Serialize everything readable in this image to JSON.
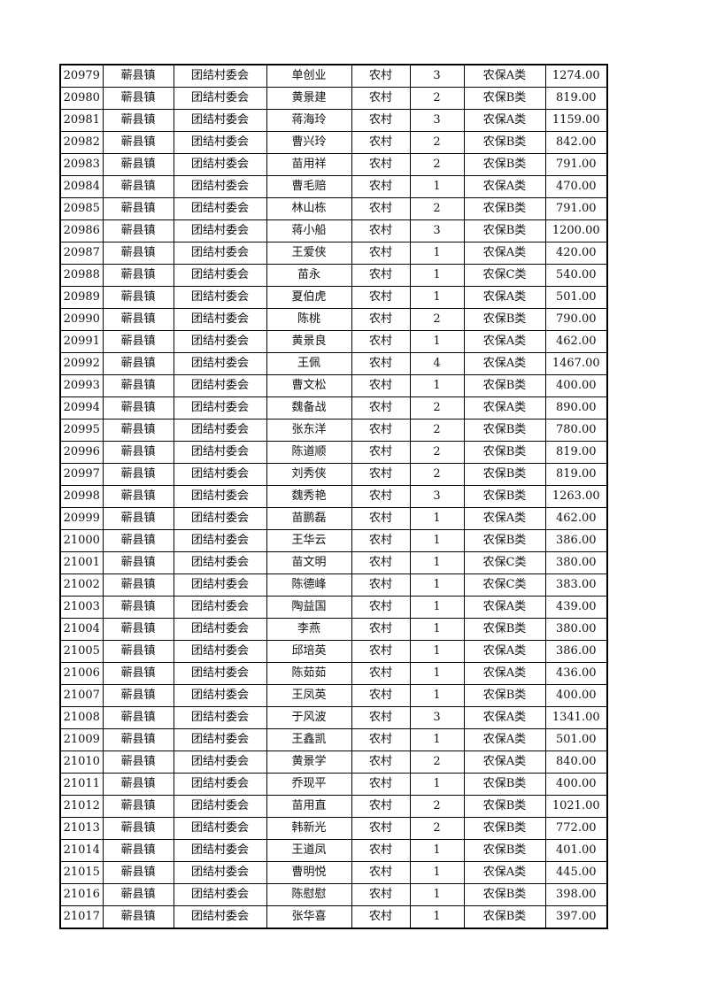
{
  "table": {
    "rows": [
      [
        "20979",
        "蕲县镇",
        "团结村委会",
        "单创业",
        "农村",
        "3",
        "农保A类",
        "1274.00"
      ],
      [
        "20980",
        "蕲县镇",
        "团结村委会",
        "黄景建",
        "农村",
        "2",
        "农保B类",
        "819.00"
      ],
      [
        "20981",
        "蕲县镇",
        "团结村委会",
        "蒋海玲",
        "农村",
        "3",
        "农保A类",
        "1159.00"
      ],
      [
        "20982",
        "蕲县镇",
        "团结村委会",
        "曹兴玲",
        "农村",
        "2",
        "农保B类",
        "842.00"
      ],
      [
        "20983",
        "蕲县镇",
        "团结村委会",
        "苗用祥",
        "农村",
        "2",
        "农保B类",
        "791.00"
      ],
      [
        "20984",
        "蕲县镇",
        "团结村委会",
        "曹毛赔",
        "农村",
        "1",
        "农保A类",
        "470.00"
      ],
      [
        "20985",
        "蕲县镇",
        "团结村委会",
        "林山栋",
        "农村",
        "2",
        "农保B类",
        "791.00"
      ],
      [
        "20986",
        "蕲县镇",
        "团结村委会",
        "蒋小船",
        "农村",
        "3",
        "农保B类",
        "1200.00"
      ],
      [
        "20987",
        "蕲县镇",
        "团结村委会",
        "王爱侠",
        "农村",
        "1",
        "农保A类",
        "420.00"
      ],
      [
        "20988",
        "蕲县镇",
        "团结村委会",
        "苗永",
        "农村",
        "1",
        "农保C类",
        "540.00"
      ],
      [
        "20989",
        "蕲县镇",
        "团结村委会",
        "夏伯虎",
        "农村",
        "1",
        "农保A类",
        "501.00"
      ],
      [
        "20990",
        "蕲县镇",
        "团结村委会",
        "陈桃",
        "农村",
        "2",
        "农保B类",
        "790.00"
      ],
      [
        "20991",
        "蕲县镇",
        "团结村委会",
        "黄景良",
        "农村",
        "1",
        "农保A类",
        "462.00"
      ],
      [
        "20992",
        "蕲县镇",
        "团结村委会",
        "王佩",
        "农村",
        "4",
        "农保A类",
        "1467.00"
      ],
      [
        "20993",
        "蕲县镇",
        "团结村委会",
        "曹文松",
        "农村",
        "1",
        "农保B类",
        "400.00"
      ],
      [
        "20994",
        "蕲县镇",
        "团结村委会",
        "魏备战",
        "农村",
        "2",
        "农保A类",
        "890.00"
      ],
      [
        "20995",
        "蕲县镇",
        "团结村委会",
        "张东洋",
        "农村",
        "2",
        "农保B类",
        "780.00"
      ],
      [
        "20996",
        "蕲县镇",
        "团结村委会",
        "陈道顺",
        "农村",
        "2",
        "农保B类",
        "819.00"
      ],
      [
        "20997",
        "蕲县镇",
        "团结村委会",
        "刘秀侠",
        "农村",
        "2",
        "农保B类",
        "819.00"
      ],
      [
        "20998",
        "蕲县镇",
        "团结村委会",
        "魏秀艳",
        "农村",
        "3",
        "农保B类",
        "1263.00"
      ],
      [
        "20999",
        "蕲县镇",
        "团结村委会",
        "苗鹏磊",
        "农村",
        "1",
        "农保A类",
        "462.00"
      ],
      [
        "21000",
        "蕲县镇",
        "团结村委会",
        "王华云",
        "农村",
        "1",
        "农保B类",
        "386.00"
      ],
      [
        "21001",
        "蕲县镇",
        "团结村委会",
        "苗文明",
        "农村",
        "1",
        "农保C类",
        "380.00"
      ],
      [
        "21002",
        "蕲县镇",
        "团结村委会",
        "陈德峰",
        "农村",
        "1",
        "农保C类",
        "383.00"
      ],
      [
        "21003",
        "蕲县镇",
        "团结村委会",
        "陶益国",
        "农村",
        "1",
        "农保A类",
        "439.00"
      ],
      [
        "21004",
        "蕲县镇",
        "团结村委会",
        "李燕",
        "农村",
        "1",
        "农保B类",
        "380.00"
      ],
      [
        "21005",
        "蕲县镇",
        "团结村委会",
        "邱培英",
        "农村",
        "1",
        "农保A类",
        "386.00"
      ],
      [
        "21006",
        "蕲县镇",
        "团结村委会",
        "陈茹茹",
        "农村",
        "1",
        "农保A类",
        "436.00"
      ],
      [
        "21007",
        "蕲县镇",
        "团结村委会",
        "王凤英",
        "农村",
        "1",
        "农保B类",
        "400.00"
      ],
      [
        "21008",
        "蕲县镇",
        "团结村委会",
        "于风波",
        "农村",
        "3",
        "农保A类",
        "1341.00"
      ],
      [
        "21009",
        "蕲县镇",
        "团结村委会",
        "王鑫凯",
        "农村",
        "1",
        "农保A类",
        "501.00"
      ],
      [
        "21010",
        "蕲县镇",
        "团结村委会",
        "黄景学",
        "农村",
        "2",
        "农保A类",
        "840.00"
      ],
      [
        "21011",
        "蕲县镇",
        "团结村委会",
        "乔现平",
        "农村",
        "1",
        "农保B类",
        "400.00"
      ],
      [
        "21012",
        "蕲县镇",
        "团结村委会",
        "苗用直",
        "农村",
        "2",
        "农保B类",
        "1021.00"
      ],
      [
        "21013",
        "蕲县镇",
        "团结村委会",
        "韩新光",
        "农村",
        "2",
        "农保B类",
        "772.00"
      ],
      [
        "21014",
        "蕲县镇",
        "团结村委会",
        "王道凤",
        "农村",
        "1",
        "农保B类",
        "401.00"
      ],
      [
        "21015",
        "蕲县镇",
        "团结村委会",
        "曹明悦",
        "农村",
        "1",
        "农保A类",
        "445.00"
      ],
      [
        "21016",
        "蕲县镇",
        "团结村委会",
        "陈慰慰",
        "农村",
        "1",
        "农保B类",
        "398.00"
      ],
      [
        "21017",
        "蕲县镇",
        "团结村委会",
        "张华喜",
        "农村",
        "1",
        "农保B类",
        "397.00"
      ]
    ]
  }
}
